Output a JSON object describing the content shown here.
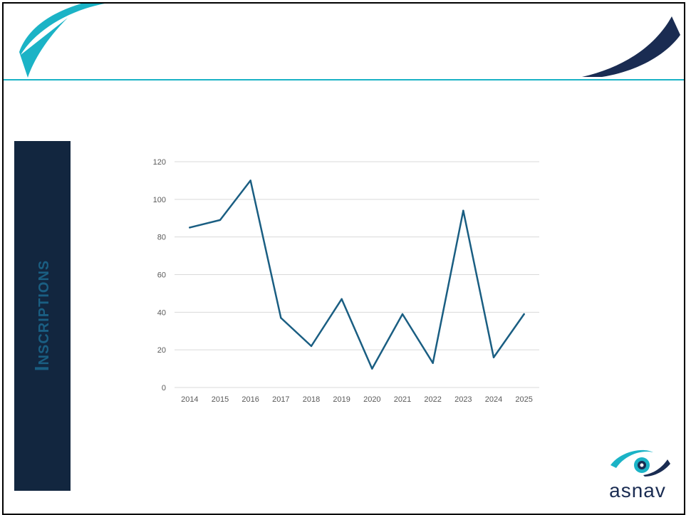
{
  "colors": {
    "teal": "#1BB3C6",
    "navy": "#1A2C52",
    "panel": "#12263F",
    "panel_text": "#1A5E82",
    "line": "#1A5E82",
    "grid": "#D9D9D9",
    "tick": "#595959",
    "logo_text": "#1A2C52"
  },
  "side_title": "Inscriptions",
  "logo": {
    "text": "asnav"
  },
  "chart_data": {
    "type": "line",
    "x": [
      "2014",
      "2015",
      "2016",
      "2017",
      "2018",
      "2019",
      "2020",
      "2021",
      "2022",
      "2023",
      "2024",
      "2025"
    ],
    "series": [
      {
        "values": [
          85,
          89,
          110,
          37,
          22,
          47,
          10,
          39,
          13,
          94,
          16,
          39
        ]
      }
    ],
    "ylim": [
      0,
      120
    ],
    "yticks": [
      0,
      20,
      40,
      60,
      80,
      100,
      120
    ],
    "grid": true,
    "legend": "none"
  }
}
